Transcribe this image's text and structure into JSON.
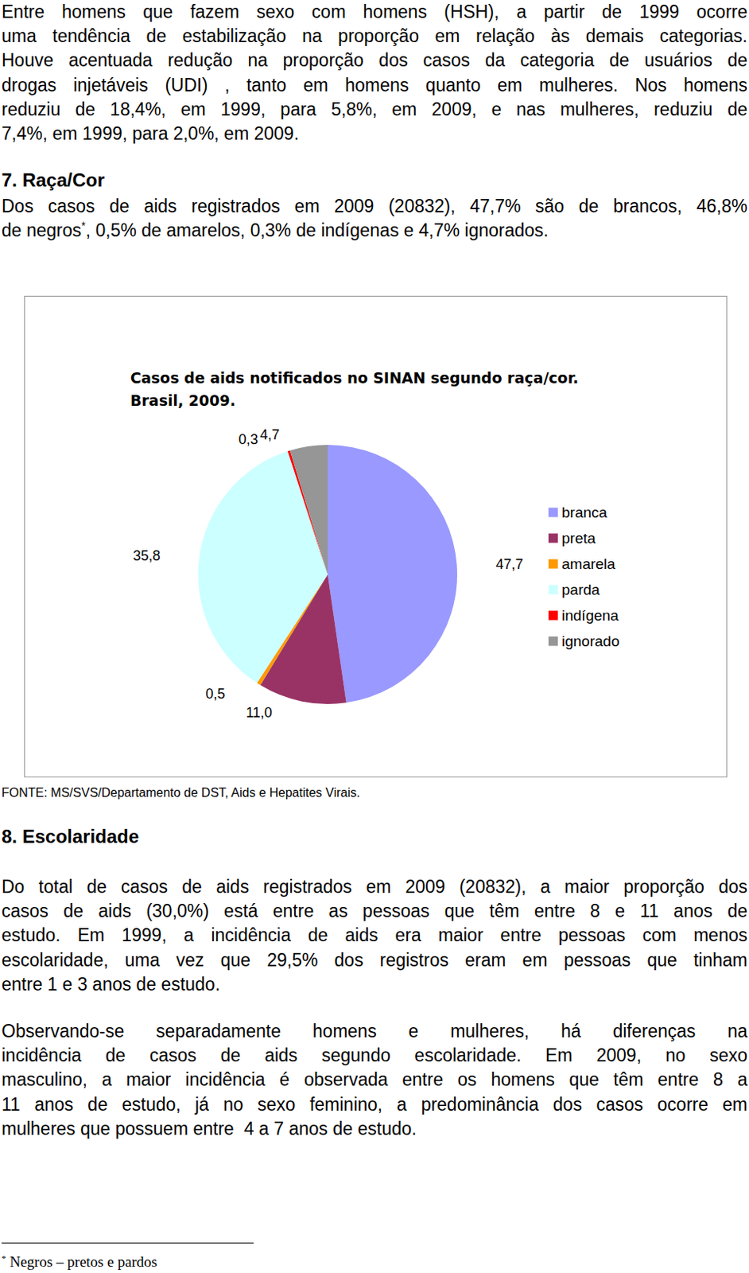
{
  "paragraph_1": [
    "Entre homens que fazem sexo com homens (HSH), a partir de 1999 ocorre",
    "uma tendência de estabilização na proporção em relação às demais categorias.",
    "Houve acentuada redução na proporção dos casos da categoria de usuários de",
    "drogas injetáveis (UDI) , tanto em homens quanto em mulheres. Nos homens",
    "reduziu de 18,4%, em 1999, para 5,8%, em 2009, e nas mulheres, reduziu de",
    "7,4%, em 1999, para 2,0%, em 2009."
  ],
  "heading_7": "7. Raça/Cor",
  "paragraph_2": [
    "Dos casos de aids registrados em 2009 (20832), 47,7% são de brancos, 46,8%",
    {
      "text": "de negros",
      "sup": "*",
      "rest": ", 0,5% de amarelos, 0,3% de indígenas e 4,7% ignorados."
    }
  ],
  "chart_data": {
    "type": "pie",
    "title": "Casos de aids notificados no SINAN segundo raça/cor.\nBrasil, 2009.",
    "categories": [
      "branca",
      "preta",
      "amarela",
      "parda",
      "indígena",
      "ignorado"
    ],
    "values": [
      47.7,
      11.0,
      0.5,
      35.8,
      0.3,
      4.7
    ],
    "value_labels": [
      "47,7",
      "11,0",
      "0,5",
      "35,8",
      "0,3",
      "4,7"
    ],
    "colors": [
      "#9999ff",
      "#993366",
      "#ff9900",
      "#ccffff",
      "#ff0000",
      "#969696"
    ],
    "data_labels": true,
    "legend": "right"
  },
  "source": "FONTE: MS/SVS/Departamento de DST, Aids e Hepatites Virais.",
  "heading_8": "8. Escolaridade",
  "paragraph_3": [
    "Do total de casos de aids registrados em 2009 (20832), a maior proporção dos",
    "casos de aids (30,0%) está entre as pessoas que têm entre 8 e 11 anos de",
    "estudo. Em 1999, a incidência de aids era maior entre pessoas com menos",
    "escolaridade, uma vez que 29,5% dos registros eram em pessoas que tinham",
    "entre 1 e 3 anos de estudo."
  ],
  "paragraph_4": [
    "Observando-se separadamente homens e mulheres, há diferenças na",
    "incidência de casos de aids segundo escolaridade. Em 2009, no sexo",
    "masculino, a maior incidência é observada entre os homens que têm entre 8 a",
    "11 anos de estudo, já no sexo feminino, a predominância dos casos ocorre em",
    "mulheres que possuem entre  4 a 7 anos de estudo."
  ],
  "footnote": {
    "mark": "*",
    "text": "Negros – pretos e pardos"
  }
}
